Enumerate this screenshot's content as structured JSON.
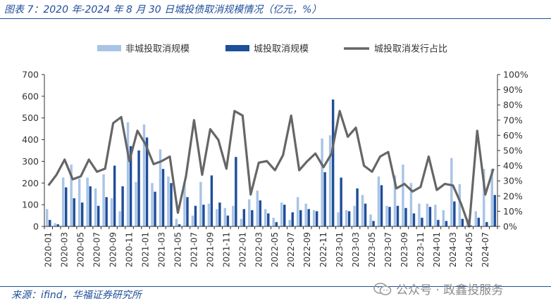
{
  "header": {
    "title": "图表 7：2020 年-2024 年 8 月 30 日城投债取消规模情况（亿元，%）"
  },
  "footer": {
    "source": "来源：ifind，华福证券研究所",
    "watermark": "公众号 · 政鑫投服务"
  },
  "chart_data": {
    "type": "bar",
    "categories": [
      "2020-01",
      "2020-02",
      "2020-03",
      "2020-04",
      "2020-05",
      "2020-06",
      "2020-07",
      "2020-08",
      "2020-09",
      "2020-10",
      "2020-11",
      "2020-12",
      "2021-01",
      "2021-02",
      "2021-03",
      "2021-04",
      "2021-05",
      "2021-06",
      "2021-07",
      "2021-08",
      "2021-09",
      "2021-10",
      "2021-11",
      "2021-12",
      "2022-01",
      "2022-02",
      "2022-03",
      "2022-04",
      "2022-05",
      "2022-06",
      "2022-07",
      "2022-08",
      "2022-09",
      "2022-10",
      "2022-11",
      "2022-12",
      "2023-01",
      "2023-02",
      "2023-03",
      "2023-04",
      "2023-05",
      "2023-06",
      "2023-07",
      "2023-08",
      "2023-09",
      "2023-10",
      "2023-11",
      "2023-12",
      "2024-01",
      "2024-02",
      "2024-03",
      "2024-04",
      "2024-05",
      "2024-06",
      "2024-07",
      "2024-08"
    ],
    "x_tick_labels": [
      "2020-01",
      "2020-03",
      "2020-05",
      "2020-07",
      "2020-09",
      "2020-11",
      "2021-01",
      "2021-03",
      "2021-05",
      "2021-07",
      "2021-09",
      "2021-11",
      "2022-01",
      "2022-03",
      "2022-05",
      "2022-07",
      "2022-09",
      "2022-11",
      "2023-01",
      "2023-03",
      "2023-05",
      "2023-07",
      "2023-09",
      "2023-11",
      "2024-01",
      "2024-03",
      "2024-05",
      "2024-07"
    ],
    "series": [
      {
        "name": "非城投取消规模",
        "type": "bar",
        "axis": "left",
        "color": "#a9c4e6",
        "values": [
          80,
          15,
          225,
          285,
          220,
          225,
          175,
          240,
          130,
          70,
          480,
          205,
          470,
          200,
          355,
          230,
          35,
          200,
          50,
          205,
          105,
          80,
          85,
          95,
          35,
          125,
          165,
          80,
          40,
          110,
          30,
          135,
          105,
          75,
          405,
          420,
          65,
          75,
          95,
          145,
          55,
          230,
          95,
          235,
          285,
          200,
          105,
          105,
          100,
          75,
          315,
          195,
          35,
          70,
          265,
          265
        ]
      },
      {
        "name": "城投取消规模",
        "type": "bar",
        "axis": "left",
        "color": "#1f4e9a",
        "values": [
          30,
          10,
          180,
          130,
          110,
          185,
          95,
          135,
          280,
          185,
          370,
          350,
          410,
          160,
          265,
          200,
          10,
          135,
          95,
          100,
          235,
          110,
          50,
          320,
          80,
          75,
          120,
          60,
          20,
          100,
          65,
          75,
          80,
          70,
          250,
          585,
          225,
          70,
          175,
          105,
          25,
          190,
          90,
          95,
          85,
          60,
          40,
          90,
          30,
          25,
          115,
          35,
          5,
          40,
          20,
          145
        ]
      },
      {
        "name": "城投取消发行占比",
        "type": "line",
        "axis": "right",
        "color": "#666666",
        "values": [
          27,
          34,
          44,
          31,
          33,
          44,
          36,
          38,
          68,
          72,
          43,
          63,
          54,
          41,
          43,
          46,
          9,
          33,
          70,
          34,
          64,
          57,
          38,
          76,
          73,
          21,
          42,
          43,
          37,
          47,
          73,
          37,
          43,
          48,
          39,
          48,
          76,
          59,
          65,
          40,
          36,
          46,
          49,
          25,
          28,
          23,
          26,
          46,
          24,
          28,
          27,
          15,
          0,
          63,
          21,
          38
        ]
      }
    ],
    "left_axis": {
      "ylim": [
        0,
        700
      ],
      "ticks": [
        0,
        100,
        200,
        300,
        400,
        500,
        600,
        700
      ]
    },
    "right_axis": {
      "ylim": [
        0,
        100
      ],
      "ticks": [
        "0%",
        "10%",
        "20%",
        "30%",
        "40%",
        "50%",
        "60%",
        "70%",
        "80%",
        "90%",
        "100%"
      ]
    },
    "legend_position": "top",
    "grid": false
  }
}
